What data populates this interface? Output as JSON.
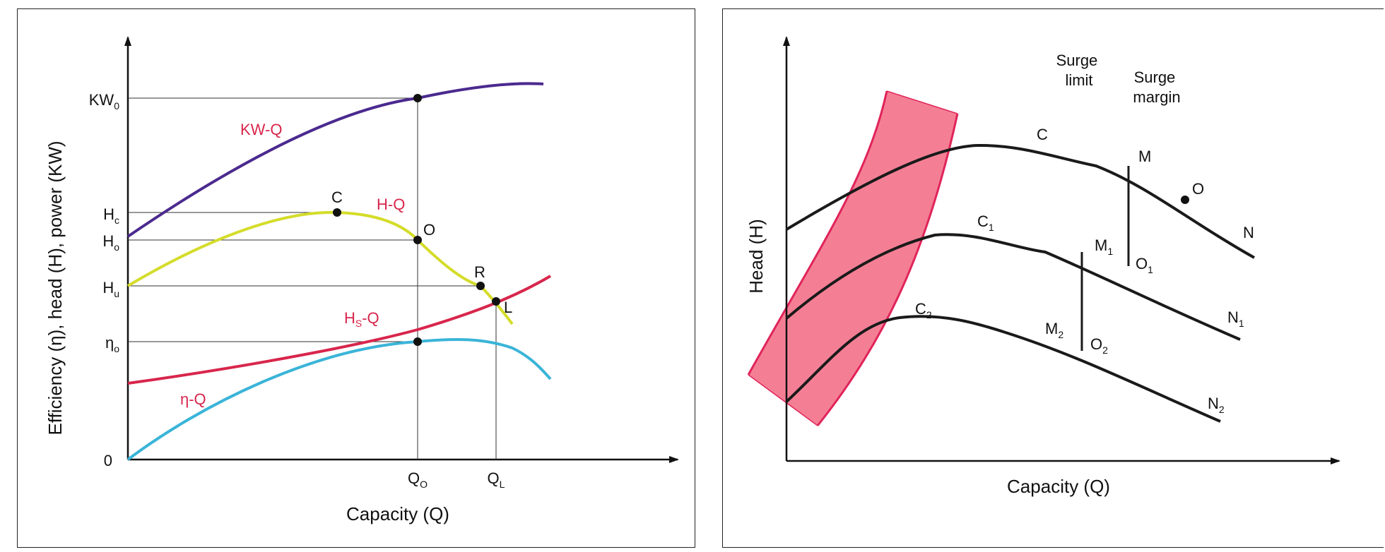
{
  "left": {
    "y_axis_title": "Efficiency (η), head (H), power (KW)",
    "x_axis_title": "Capacity (Q)",
    "y_ticks": {
      "kw0": {
        "main": "KW",
        "sub": "0"
      },
      "hc": {
        "main": "H",
        "sub": "c"
      },
      "ho": {
        "main": "H",
        "sub": "o"
      },
      "hu": {
        "main": "H",
        "sub": "u"
      },
      "eta_o": {
        "main": "η",
        "sub": "o"
      },
      "zero": "0"
    },
    "x_ticks": {
      "qo": {
        "main": "Q",
        "sub": "O"
      },
      "ql": {
        "main": "Q",
        "sub": "L"
      }
    },
    "curve_labels": {
      "kwq": "KW-Q",
      "hq": "H-Q",
      "hsq": {
        "main": "H",
        "sub": "S",
        "suffix": "-Q"
      },
      "etaq": "η-Q"
    },
    "point_labels": {
      "c": "C",
      "o": "O",
      "r": "R",
      "l": "L"
    },
    "colors": {
      "kwq": "#4b2a8f",
      "hq": "#d4dc2a",
      "hsq": "#d8264c",
      "etaq": "#3ab4d8",
      "label_red": "#d8264c"
    }
  },
  "right": {
    "y_axis_title": "Head (H)",
    "x_axis_title": "Capacity (Q)",
    "surge_limit": [
      "Surge",
      "limit"
    ],
    "surge_margin": [
      "Surge",
      "margin"
    ],
    "point_labels": {
      "c": "C",
      "m": "M",
      "o": "O",
      "n": "N",
      "c1": {
        "main": "C",
        "sub": "1"
      },
      "m1": {
        "main": "M",
        "sub": "1"
      },
      "o1": {
        "main": "O",
        "sub": "1"
      },
      "n1": {
        "main": "N",
        "sub": "1"
      },
      "c2": {
        "main": "C",
        "sub": "2"
      },
      "m2": {
        "main": "M",
        "sub": "2"
      },
      "o2": {
        "main": "O",
        "sub": "2"
      },
      "n2": {
        "main": "N",
        "sub": "2"
      }
    },
    "colors": {
      "band_fill": "#f47f95",
      "band_edge": "#e0245a",
      "curve": "#1a1a1a"
    }
  }
}
